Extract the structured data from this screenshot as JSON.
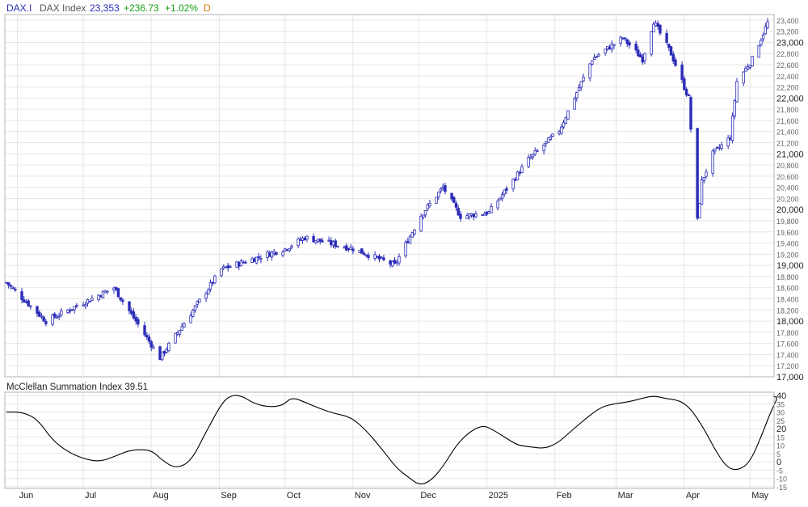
{
  "header": {
    "symbol": "DAX.I",
    "name": "DAX Index",
    "last": "23,353",
    "change": "+236.73",
    "change_pct": "+1.02%",
    "period": "D"
  },
  "indicator": {
    "label": "McClellan Summation Index 39.51"
  },
  "colors": {
    "candle": "#2b2bb8",
    "indicator_line": "#000000",
    "grid": "#e6e6e6",
    "label_blue": "#2b2bb8",
    "label_green": "#18a018",
    "label_orange": "#e07a10"
  },
  "chart_data": [
    {
      "type": "candlestick",
      "title": "DAX Index",
      "ylim": [
        17000,
        23500
      ],
      "y_ticks": [
        17000,
        17200,
        17400,
        17600,
        17800,
        18000,
        18200,
        18400,
        18600,
        18800,
        19000,
        19200,
        19400,
        19600,
        19800,
        20000,
        20200,
        20400,
        20600,
        20800,
        21000,
        21200,
        21400,
        21600,
        21800,
        22000,
        22200,
        22400,
        22600,
        22800,
        23000,
        23200,
        23400
      ],
      "y_tick_labels": [
        "17,000",
        "17,200",
        "17,400",
        "17,600",
        "17,800",
        "18,000",
        "18,200",
        "18,400",
        "18,600",
        "18,800",
        "19,000",
        "19,200",
        "19,400",
        "19,600",
        "19,800",
        "20,000",
        "20,200",
        "20,400",
        "20,600",
        "20,800",
        "21,000",
        "21,200",
        "21,400",
        "21,600",
        "21,800",
        "22,000",
        "22,200",
        "22,400",
        "22,600",
        "22,800",
        "23,000",
        "23,200",
        "23,400"
      ],
      "x_labels": [
        "Jun",
        "Jul",
        "Aug",
        "Sep",
        "Oct",
        "Nov",
        "Dec",
        "2025",
        "Feb",
        "Mar",
        "Apr",
        "May"
      ],
      "x_label_dates": [
        "2024-06-01",
        "2024-07-01",
        "2024-08-01",
        "2024-09-01",
        "2024-10-01",
        "2024-11-01",
        "2024-12-01",
        "2025-01-01",
        "2025-02-01",
        "2025-03-01",
        "2025-04-01",
        "2025-05-01"
      ],
      "range": [
        "2024-05-27",
        "2025-05-09"
      ],
      "key_closes": [
        [
          "2024-05-27",
          18690
        ],
        [
          "2024-06-14",
          18000
        ],
        [
          "2024-07-15",
          18600
        ],
        [
          "2024-08-05",
          17340
        ],
        [
          "2024-09-02",
          18930
        ],
        [
          "2024-10-01",
          19300
        ],
        [
          "2024-10-10",
          19500
        ],
        [
          "2024-11-01",
          19300
        ],
        [
          "2024-11-20",
          19000
        ],
        [
          "2024-12-02",
          19900
        ],
        [
          "2024-12-12",
          20400
        ],
        [
          "2024-12-20",
          19880
        ],
        [
          "2025-01-02",
          19950
        ],
        [
          "2025-01-20",
          20900
        ],
        [
          "2025-02-03",
          21420
        ],
        [
          "2025-02-18",
          22700
        ],
        [
          "2025-03-04",
          23080
        ],
        [
          "2025-03-13",
          22700
        ],
        [
          "2025-03-18",
          23380
        ],
        [
          "2025-03-26",
          22800
        ],
        [
          "2025-04-03",
          22000
        ],
        [
          "2025-04-07",
          19800
        ],
        [
          "2025-04-09",
          20500
        ],
        [
          "2025-04-14",
          21000
        ],
        [
          "2025-04-22",
          21300
        ],
        [
          "2025-04-25",
          22300
        ],
        [
          "2025-05-02",
          22700
        ],
        [
          "2025-05-09",
          23353
        ]
      ]
    },
    {
      "type": "line",
      "title": "McClellan Summation Index",
      "ylim": [
        -16,
        42
      ],
      "y_ticks": [
        -15,
        -10,
        -5,
        0,
        5,
        10,
        15,
        20,
        25,
        30,
        35,
        40
      ],
      "y_tick_labels": [
        "-15",
        "-10",
        "-5",
        "0",
        "5",
        "10",
        "15",
        "20",
        "25",
        "30",
        "35",
        "40"
      ],
      "points": [
        [
          "2024-05-27",
          30
        ],
        [
          "2024-06-03",
          30
        ],
        [
          "2024-06-10",
          26
        ],
        [
          "2024-06-17",
          13
        ],
        [
          "2024-06-24",
          6
        ],
        [
          "2024-07-01",
          2
        ],
        [
          "2024-07-08",
          0
        ],
        [
          "2024-07-15",
          3
        ],
        [
          "2024-07-22",
          7
        ],
        [
          "2024-07-29",
          7.5
        ],
        [
          "2024-08-02",
          6
        ],
        [
          "2024-08-06",
          1
        ],
        [
          "2024-08-12",
          -4
        ],
        [
          "2024-08-19",
          0
        ],
        [
          "2024-08-26",
          18
        ],
        [
          "2024-09-02",
          35
        ],
        [
          "2024-09-06",
          40
        ],
        [
          "2024-09-11",
          40
        ],
        [
          "2024-09-17",
          35
        ],
        [
          "2024-09-24",
          33
        ],
        [
          "2024-09-30",
          34
        ],
        [
          "2024-10-04",
          39
        ],
        [
          "2024-10-10",
          36
        ],
        [
          "2024-10-17",
          32
        ],
        [
          "2024-10-24",
          29
        ],
        [
          "2024-10-31",
          27
        ],
        [
          "2024-11-07",
          19
        ],
        [
          "2024-11-14",
          8
        ],
        [
          "2024-11-21",
          -4
        ],
        [
          "2024-11-26",
          -9
        ],
        [
          "2024-12-01",
          -14
        ],
        [
          "2024-12-06",
          -12
        ],
        [
          "2024-12-12",
          -3
        ],
        [
          "2024-12-18",
          10
        ],
        [
          "2024-12-24",
          18
        ],
        [
          "2024-12-30",
          22
        ],
        [
          "2025-01-03",
          20
        ],
        [
          "2025-01-09",
          15
        ],
        [
          "2025-01-15",
          10
        ],
        [
          "2025-01-21",
          9
        ],
        [
          "2025-01-27",
          8
        ],
        [
          "2025-02-02",
          11
        ],
        [
          "2025-02-08",
          18
        ],
        [
          "2025-02-15",
          26
        ],
        [
          "2025-02-22",
          33
        ],
        [
          "2025-02-28",
          35
        ],
        [
          "2025-03-06",
          36
        ],
        [
          "2025-03-12",
          38
        ],
        [
          "2025-03-18",
          40
        ],
        [
          "2025-03-24",
          38
        ],
        [
          "2025-03-30",
          37
        ],
        [
          "2025-04-04",
          32
        ],
        [
          "2025-04-10",
          20
        ],
        [
          "2025-04-16",
          5
        ],
        [
          "2025-04-21",
          -4
        ],
        [
          "2025-04-26",
          -5
        ],
        [
          "2025-05-01",
          0
        ],
        [
          "2025-05-06",
          15
        ],
        [
          "2025-05-11",
          32
        ],
        [
          "2025-05-14",
          39.5
        ]
      ]
    }
  ]
}
